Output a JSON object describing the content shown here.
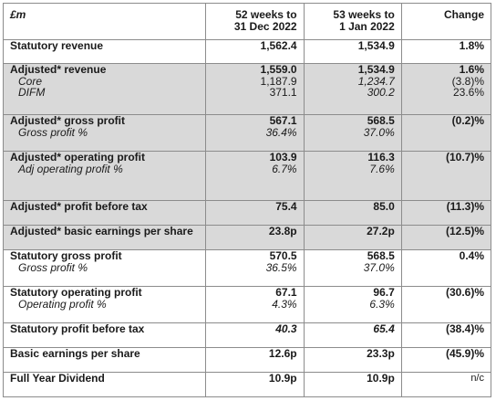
{
  "header": {
    "unit": "£m",
    "col1": "52 weeks to",
    "col1b": "31 Dec 2022",
    "col2": "53 weeks to",
    "col2b": "1 Jan 2022",
    "col3": "Change"
  },
  "rows": {
    "stat_rev": {
      "label": "Statutory revenue",
      "v1": "1,562.4",
      "v2": "1,534.9",
      "ch": "1.8%"
    },
    "adj_rev": {
      "label": "Adjusted* revenue",
      "v1": "1,559.0",
      "v2": "1,534.9",
      "ch": "1.6%",
      "core_label": "Core",
      "core_v1": "1,187.9",
      "core_v2": "1,234.7",
      "core_ch": "(3.8)%",
      "difm_label": "DIFM",
      "difm_v1": "371.1",
      "difm_v2": "300.2",
      "difm_ch": "23.6%"
    },
    "adj_gp": {
      "label": "Adjusted* gross profit",
      "v1": "567.1",
      "v2": "568.5",
      "ch": "(0.2)%",
      "sub_label": "Gross profit %",
      "sub_v1": "36.4%",
      "sub_v2": "37.0%"
    },
    "adj_op": {
      "label": "Adjusted* operating profit",
      "v1": "103.9",
      "v2": "116.3",
      "ch": "(10.7)%",
      "sub_label": "Adj operating profit %",
      "sub_v1": "6.7%",
      "sub_v2": "7.6%"
    },
    "adj_pbt": {
      "label": "Adjusted* profit before tax",
      "v1": "75.4",
      "v2": "85.0",
      "ch": "(11.3)%"
    },
    "adj_eps": {
      "label": "Adjusted* basic earnings per share",
      "v1": "23.8p",
      "v2": "27.2p",
      "ch": "(12.5)%"
    },
    "stat_gp": {
      "label": "Statutory gross profit",
      "v1": "570.5",
      "v2": "568.5",
      "ch": "0.4%",
      "sub_label": "Gross profit %",
      "sub_v1": "36.5%",
      "sub_v2": "37.0%"
    },
    "stat_op": {
      "label": "Statutory operating profit",
      "v1": "67.1",
      "v2": "96.7",
      "ch": "(30.6)%",
      "sub_label": "Operating profit %",
      "sub_v1": "4.3%",
      "sub_v2": "6.3%"
    },
    "stat_pbt": {
      "label": "Statutory profit before tax",
      "v1": "40.3",
      "v2": "65.4",
      "ch": "(38.4)%"
    },
    "eps": {
      "label": "Basic earnings per share",
      "v1": "12.6p",
      "v2": "23.3p",
      "ch": "(45.9)%"
    },
    "div": {
      "label": "Full Year Dividend",
      "v1": "10.9p",
      "v2": "10.9p",
      "ch": "n/c"
    }
  }
}
